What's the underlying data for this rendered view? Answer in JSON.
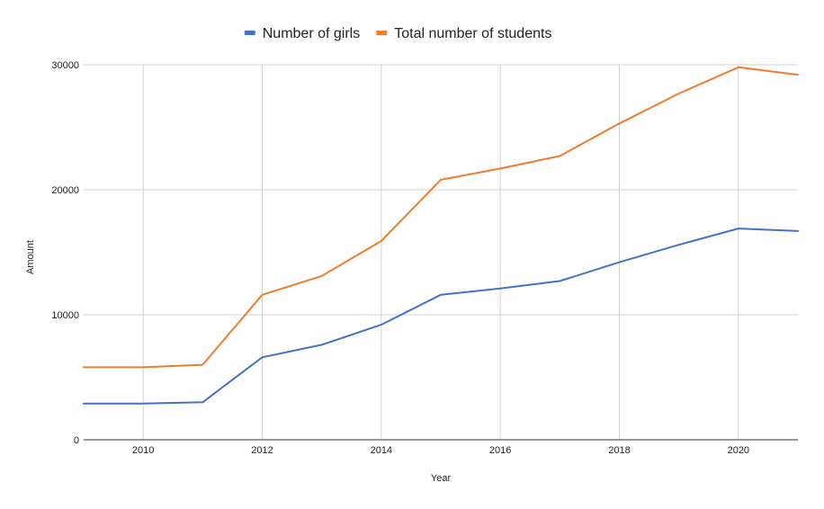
{
  "chart_data": {
    "type": "line",
    "title": "",
    "xlabel": "Year",
    "ylabel": "Amount",
    "xlim": [
      2009,
      2021
    ],
    "ylim": [
      0,
      30000
    ],
    "x_ticks": [
      "2010",
      "2012",
      "2014",
      "2016",
      "2018",
      "2020"
    ],
    "y_ticks": [
      "0",
      "10000",
      "20000",
      "30000"
    ],
    "grid": true,
    "legend_position": "top-center",
    "x": [
      2009,
      2010,
      2011,
      2012,
      2013,
      2014,
      2015,
      2016,
      2017,
      2018,
      2019,
      2020,
      2021
    ],
    "series": [
      {
        "name": "Number of girls",
        "color": "#4472c4",
        "values": [
          2900,
          2900,
          3000,
          6600,
          7600,
          9200,
          11600,
          12100,
          12700,
          14200,
          15600,
          16900,
          16700
        ]
      },
      {
        "name": "Total number of students",
        "color": "#ed7d31",
        "values": [
          5800,
          5800,
          6000,
          11600,
          13100,
          15900,
          20800,
          21700,
          22700,
          25300,
          27700,
          29800,
          29200
        ]
      }
    ]
  }
}
